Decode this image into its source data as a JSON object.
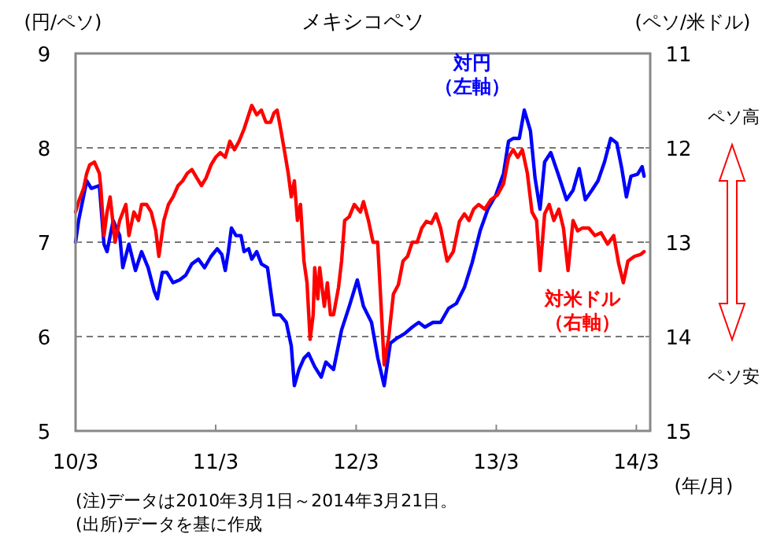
{
  "chart_data": {
    "type": "line",
    "title": "メキシコペソ",
    "ylabel": "(円/ペソ)",
    "y2label": "(ペソ/米ドル)",
    "xlabel": "(年/月)",
    "xlim": [
      "2010-03-01",
      "2014-04-06"
    ],
    "xticks": [
      {
        "value": "2010-03-01",
        "label": "10/3"
      },
      {
        "value": "2011-03-01",
        "label": "11/3"
      },
      {
        "value": "2012-03-01",
        "label": "12/3"
      },
      {
        "value": "2013-03-01",
        "label": "13/3"
      },
      {
        "value": "2014-03-01",
        "label": "14/3"
      }
    ],
    "ylim": [
      5,
      9
    ],
    "yticks": [
      5,
      6,
      7,
      8,
      9
    ],
    "y2lim": [
      15,
      11
    ],
    "y2ticks": [
      15,
      14,
      13,
      12,
      11
    ],
    "grid": "y",
    "line_style": "solid",
    "marker": "none",
    "series": [
      {
        "name": "対円（左軸）",
        "color": "#0000ff",
        "x": [
          "2010-03-01",
          "2010-03-09",
          "2010-03-30",
          "2010-04-11",
          "2010-05-02",
          "2010-05-14",
          "2010-05-22",
          "2010-06-07",
          "2010-06-24",
          "2010-07-02",
          "2010-07-18",
          "2010-08-04",
          "2010-08-20",
          "2010-09-06",
          "2010-09-22",
          "2010-09-30",
          "2010-10-13",
          "2010-10-25",
          "2010-11-10",
          "2010-11-27",
          "2010-12-13",
          "2010-12-29",
          "2011-01-15",
          "2011-01-31",
          "2011-02-17",
          "2011-03-05",
          "2011-03-17",
          "2011-03-26",
          "2011-04-03",
          "2011-04-11",
          "2011-04-23",
          "2011-05-06",
          "2011-05-14",
          "2011-05-26",
          "2011-06-03",
          "2011-06-16",
          "2011-06-28",
          "2011-07-14",
          "2011-07-31",
          "2011-08-16",
          "2011-09-01",
          "2011-09-14",
          "2011-09-22",
          "2011-10-04",
          "2011-10-17",
          "2011-10-29",
          "2011-11-14",
          "2011-12-01",
          "2011-12-13",
          "2012-01-02",
          "2012-01-23",
          "2012-02-12",
          "2012-03-04",
          "2012-03-20",
          "2012-04-10",
          "2012-04-26",
          "2012-05-13",
          "2012-05-29",
          "2012-06-14",
          "2012-07-05",
          "2012-07-25",
          "2012-08-11",
          "2012-08-27",
          "2012-09-17",
          "2012-10-07",
          "2012-10-28",
          "2012-11-17",
          "2012-12-08",
          "2012-12-28",
          "2013-01-18",
          "2013-02-07",
          "2013-02-28",
          "2013-03-20",
          "2013-04-02",
          "2013-04-14",
          "2013-04-30",
          "2013-05-13",
          "2013-05-29",
          "2013-06-10",
          "2013-06-23",
          "2013-07-05",
          "2013-07-21",
          "2013-08-11",
          "2013-08-31",
          "2013-09-17",
          "2013-10-03",
          "2013-10-19",
          "2013-11-05",
          "2013-11-21",
          "2013-12-08",
          "2013-12-24",
          "2014-01-09",
          "2014-01-22",
          "2014-02-03",
          "2014-02-15",
          "2014-03-04",
          "2014-03-16",
          "2014-03-21"
        ],
        "values": [
          7.0,
          7.23,
          7.65,
          7.57,
          7.6,
          6.98,
          6.9,
          7.23,
          7.07,
          6.73,
          6.98,
          6.7,
          6.9,
          6.73,
          6.48,
          6.4,
          6.68,
          6.68,
          6.57,
          6.6,
          6.65,
          6.77,
          6.82,
          6.73,
          6.85,
          6.93,
          6.87,
          6.7,
          6.9,
          7.15,
          7.07,
          7.07,
          6.9,
          6.93,
          6.82,
          6.9,
          6.77,
          6.73,
          6.23,
          6.23,
          6.15,
          5.9,
          5.48,
          5.65,
          5.77,
          5.82,
          5.68,
          5.57,
          5.73,
          5.65,
          6.07,
          6.32,
          6.6,
          6.32,
          6.15,
          5.78,
          5.48,
          5.93,
          5.98,
          6.03,
          6.1,
          6.15,
          6.1,
          6.15,
          6.15,
          6.3,
          6.35,
          6.52,
          6.78,
          7.12,
          7.35,
          7.5,
          7.73,
          8.07,
          8.1,
          8.1,
          8.4,
          8.18,
          7.68,
          7.35,
          7.85,
          7.95,
          7.7,
          7.45,
          7.55,
          7.78,
          7.45,
          7.55,
          7.65,
          7.85,
          8.1,
          8.05,
          7.78,
          7.48,
          7.7,
          7.72,
          7.8,
          7.7
        ]
      },
      {
        "name": "対米ドル（右軸）",
        "color": "#ff0000",
        "axis": "y2",
        "x": [
          "2010-03-01",
          "2010-03-09",
          "2010-03-22",
          "2010-03-30",
          "2010-04-07",
          "2010-04-19",
          "2010-05-02",
          "2010-05-06",
          "2010-05-14",
          "2010-05-22",
          "2010-05-30",
          "2010-06-12",
          "2010-06-24",
          "2010-07-10",
          "2010-07-18",
          "2010-07-31",
          "2010-08-12",
          "2010-08-20",
          "2010-09-02",
          "2010-09-14",
          "2010-09-26",
          "2010-10-04",
          "2010-10-17",
          "2010-10-29",
          "2010-11-10",
          "2010-11-23",
          "2010-12-05",
          "2010-12-17",
          "2010-12-29",
          "2011-01-11",
          "2011-01-23",
          "2011-02-04",
          "2011-02-17",
          "2011-03-01",
          "2011-03-13",
          "2011-03-26",
          "2011-04-07",
          "2011-04-19",
          "2011-05-01",
          "2011-05-14",
          "2011-05-26",
          "2011-06-03",
          "2011-06-16",
          "2011-06-28",
          "2011-07-10",
          "2011-07-22",
          "2011-07-31",
          "2011-08-08",
          "2011-08-16",
          "2011-08-28",
          "2011-09-06",
          "2011-09-14",
          "2011-09-22",
          "2011-09-30",
          "2011-10-08",
          "2011-10-17",
          "2011-10-25",
          "2011-11-02",
          "2011-11-10",
          "2011-11-14",
          "2011-11-22",
          "2011-11-27",
          "2011-12-09",
          "2011-12-17",
          "2011-12-25",
          "2012-01-02",
          "2012-01-15",
          "2012-01-23",
          "2012-01-31",
          "2012-02-12",
          "2012-02-25",
          "2012-03-12",
          "2012-03-20",
          "2012-04-02",
          "2012-04-14",
          "2012-04-26",
          "2012-05-04",
          "2012-05-13",
          "2012-05-25",
          "2012-06-06",
          "2012-06-19",
          "2012-07-01",
          "2012-07-13",
          "2012-07-25",
          "2012-08-07",
          "2012-08-19",
          "2012-08-31",
          "2012-09-13",
          "2012-09-25",
          "2012-10-07",
          "2012-10-24",
          "2012-11-09",
          "2012-11-25",
          "2012-12-08",
          "2012-12-20",
          "2013-01-01",
          "2013-01-14",
          "2013-01-30",
          "2013-02-15",
          "2013-03-04",
          "2013-03-20",
          "2013-04-02",
          "2013-04-14",
          "2013-04-26",
          "2013-05-08",
          "2013-05-21",
          "2013-06-02",
          "2013-06-14",
          "2013-06-23",
          "2013-07-05",
          "2013-07-17",
          "2013-07-29",
          "2013-08-11",
          "2013-08-23",
          "2013-09-04",
          "2013-09-17",
          "2013-09-29",
          "2013-10-11",
          "2013-10-28",
          "2013-11-13",
          "2013-11-29",
          "2013-12-16",
          "2014-01-01",
          "2014-01-14",
          "2014-01-26",
          "2014-02-07",
          "2014-02-24",
          "2014-03-12",
          "2014-03-21"
        ],
        "values": [
          12.68,
          12.57,
          12.43,
          12.27,
          12.18,
          12.15,
          12.27,
          12.43,
          12.93,
          12.68,
          12.52,
          13.0,
          12.77,
          12.6,
          12.93,
          12.68,
          12.77,
          12.6,
          12.6,
          12.68,
          12.88,
          13.15,
          12.77,
          12.6,
          12.52,
          12.4,
          12.35,
          12.27,
          12.23,
          12.32,
          12.4,
          12.32,
          12.18,
          12.1,
          12.05,
          12.1,
          11.93,
          12.02,
          11.93,
          11.8,
          11.65,
          11.55,
          11.65,
          11.6,
          11.73,
          11.73,
          11.63,
          11.6,
          11.77,
          12.05,
          12.27,
          12.52,
          12.35,
          12.77,
          12.6,
          13.2,
          13.43,
          14.03,
          13.77,
          13.27,
          13.6,
          13.27,
          13.68,
          13.43,
          13.77,
          13.77,
          13.48,
          13.2,
          12.77,
          12.73,
          12.6,
          12.68,
          12.57,
          12.77,
          13.0,
          13.0,
          13.6,
          14.3,
          14.0,
          13.55,
          13.45,
          13.2,
          13.15,
          13.0,
          13.0,
          12.85,
          12.78,
          12.8,
          12.7,
          12.85,
          13.2,
          13.1,
          12.78,
          12.7,
          12.77,
          12.65,
          12.6,
          12.65,
          12.55,
          12.5,
          12.38,
          12.1,
          12.02,
          12.1,
          12.02,
          12.27,
          12.68,
          12.77,
          13.3,
          12.7,
          12.6,
          12.77,
          12.65,
          12.85,
          13.3,
          12.77,
          12.88,
          12.85,
          12.85,
          12.93,
          12.9,
          13.02,
          12.93,
          13.23,
          13.43,
          13.2,
          13.15,
          13.13,
          13.1
        ]
      }
    ],
    "annotations": [
      "(注)データは2010年3月1日～2014年3月21日。",
      "(出所)データを基に作成",
      "ペソ高",
      "ペソ安"
    ]
  }
}
